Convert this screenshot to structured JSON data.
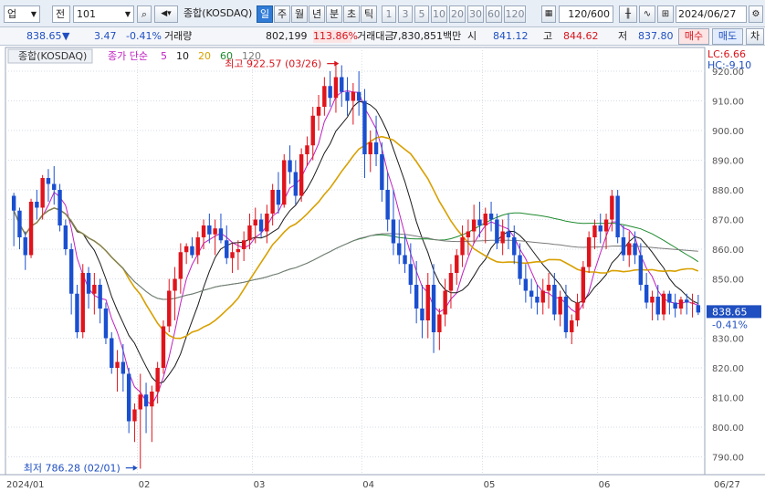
{
  "toolbar": {
    "market_select": "업",
    "prefix_label": "전",
    "code_value": "101",
    "index_name": "종합(KOSDAQ)",
    "period_tabs": [
      "일",
      "주",
      "월",
      "년",
      "분",
      "초",
      "틱"
    ],
    "active_period": "일",
    "interval_buttons": [
      "1",
      "3",
      "5",
      "10",
      "20",
      "30",
      "60",
      "120"
    ],
    "count_value": "120",
    "count_total": "/600",
    "date_value": "2024/06/27"
  },
  "quote": {
    "price": "838.65",
    "price_arrow": "▼",
    "change": "3.47",
    "change_pct": "-0.41%",
    "volume_label": "거래량",
    "volume": "802,199",
    "volume_ratio": "113.86%",
    "amount_label": "거래대금",
    "amount": "7,830,851백만",
    "open_label": "시",
    "open": "841.12",
    "high_label": "고",
    "high": "844.62",
    "low_label": "저",
    "low": "837.80",
    "buy_label": "매수",
    "sell_label": "매도",
    "extra_label": "차"
  },
  "chart_data": {
    "type": "candlestick",
    "title": "종합(KOSDAQ)",
    "indicator_label": "종가 단순",
    "ma_periods": [
      "5",
      "10",
      "20",
      "60",
      "120"
    ],
    "ma_colors": [
      "#c020c0",
      "#1a1a1a",
      "#d8a000",
      "#1e8a2e",
      "#7a7a7a"
    ],
    "up_color": "#e0141c",
    "down_color": "#1a4fd0",
    "ylim": [
      784,
      928
    ],
    "yticks": [
      790,
      800,
      810,
      820,
      830,
      840,
      850,
      860,
      870,
      880,
      890,
      900,
      910,
      920
    ],
    "ytick_labels": [
      "790.00",
      "800.00",
      "810.00",
      "820.00",
      "830.00",
      "840.00",
      "850.00",
      "860.00",
      "870.00",
      "880.00",
      "890.00",
      "900.00",
      "910.00",
      "920.00"
    ],
    "xtick_labels": [
      {
        "label": "2024/01",
        "index": 0
      },
      {
        "label": "02",
        "index": 22
      },
      {
        "label": "03",
        "index": 42
      },
      {
        "label": "04",
        "index": 61
      },
      {
        "label": "05",
        "index": 82
      },
      {
        "label": "06",
        "index": 102
      },
      {
        "label": "06/27",
        "index": 119
      }
    ],
    "current_price_label": "838.65",
    "current_change_label": "-0.41%",
    "lc_label": "LC:6.66",
    "hc_label": "HC:-9.10",
    "high_annotation": {
      "label": "최고 922.57 (03/26)",
      "index": 57,
      "value": 922.57
    },
    "low_annotation": {
      "label": "최저 786.28 (02/01)",
      "index": 22,
      "value": 786.28
    },
    "ohlc": [
      [
        878,
        879,
        861,
        873
      ],
      [
        873,
        874,
        860,
        864
      ],
      [
        864,
        866,
        853,
        858
      ],
      [
        858,
        877,
        857,
        876
      ],
      [
        876,
        880,
        870,
        874
      ],
      [
        874,
        885,
        870,
        884
      ],
      [
        884,
        887,
        876,
        882
      ],
      [
        882,
        888,
        875,
        880
      ],
      [
        880,
        882,
        866,
        868
      ],
      [
        868,
        870,
        858,
        860
      ],
      [
        860,
        862,
        838,
        845
      ],
      [
        845,
        848,
        830,
        832
      ],
      [
        832,
        855,
        830,
        852
      ],
      [
        852,
        854,
        840,
        845
      ],
      [
        845,
        852,
        838,
        848
      ],
      [
        848,
        850,
        835,
        840
      ],
      [
        840,
        842,
        828,
        830
      ],
      [
        830,
        832,
        818,
        820
      ],
      [
        820,
        826,
        812,
        822
      ],
      [
        822,
        828,
        812,
        818
      ],
      [
        818,
        820,
        798,
        802
      ],
      [
        802,
        808,
        795,
        806
      ],
      [
        806,
        818,
        786,
        811
      ],
      [
        811,
        815,
        798,
        807
      ],
      [
        807,
        814,
        795,
        812
      ],
      [
        812,
        822,
        808,
        820
      ],
      [
        820,
        836,
        818,
        834
      ],
      [
        834,
        850,
        832,
        846
      ],
      [
        846,
        854,
        836,
        850
      ],
      [
        850,
        862,
        845,
        859
      ],
      [
        859,
        862,
        855,
        861
      ],
      [
        861,
        864,
        857,
        858
      ],
      [
        858,
        866,
        855,
        864
      ],
      [
        864,
        870,
        860,
        868
      ],
      [
        868,
        872,
        862,
        865
      ],
      [
        865,
        870,
        858,
        867
      ],
      [
        867,
        872,
        862,
        863
      ],
      [
        863,
        868,
        855,
        857
      ],
      [
        857,
        862,
        852,
        859
      ],
      [
        859,
        863,
        853,
        860
      ],
      [
        860,
        866,
        856,
        863
      ],
      [
        863,
        872,
        860,
        868
      ],
      [
        868,
        874,
        862,
        870
      ],
      [
        870,
        872,
        864,
        866
      ],
      [
        866,
        875,
        862,
        872
      ],
      [
        872,
        882,
        868,
        880
      ],
      [
        880,
        886,
        872,
        875
      ],
      [
        875,
        892,
        874,
        890
      ],
      [
        890,
        895,
        882,
        886
      ],
      [
        886,
        890,
        875,
        878
      ],
      [
        878,
        894,
        876,
        892
      ],
      [
        892,
        898,
        888,
        895
      ],
      [
        895,
        908,
        890,
        905
      ],
      [
        905,
        912,
        900,
        908
      ],
      [
        908,
        918,
        905,
        915
      ],
      [
        915,
        920,
        908,
        911
      ],
      [
        911,
        923,
        906,
        918
      ],
      [
        918,
        922,
        908,
        913
      ],
      [
        913,
        918,
        905,
        910
      ],
      [
        910,
        916,
        902,
        913
      ],
      [
        913,
        920,
        905,
        910
      ],
      [
        910,
        914,
        884,
        892
      ],
      [
        892,
        900,
        886,
        896
      ],
      [
        896,
        905,
        888,
        892
      ],
      [
        892,
        896,
        876,
        880
      ],
      [
        880,
        886,
        866,
        870
      ],
      [
        870,
        880,
        858,
        862
      ],
      [
        862,
        870,
        855,
        858
      ],
      [
        858,
        865,
        852,
        855
      ],
      [
        855,
        862,
        845,
        848
      ],
      [
        848,
        856,
        835,
        840
      ],
      [
        840,
        848,
        830,
        836
      ],
      [
        836,
        852,
        830,
        848
      ],
      [
        848,
        855,
        825,
        832
      ],
      [
        832,
        840,
        826,
        838
      ],
      [
        838,
        850,
        834,
        846
      ],
      [
        846,
        855,
        840,
        852
      ],
      [
        852,
        860,
        848,
        858
      ],
      [
        858,
        868,
        854,
        864
      ],
      [
        864,
        870,
        858,
        866
      ],
      [
        866,
        875,
        862,
        870
      ],
      [
        870,
        876,
        864,
        868
      ],
      [
        868,
        874,
        862,
        872
      ],
      [
        872,
        876,
        866,
        870
      ],
      [
        870,
        872,
        860,
        862
      ],
      [
        862,
        870,
        858,
        866
      ],
      [
        866,
        872,
        860,
        864
      ],
      [
        864,
        868,
        855,
        858
      ],
      [
        858,
        862,
        848,
        850
      ],
      [
        850,
        855,
        842,
        846
      ],
      [
        846,
        850,
        840,
        844
      ],
      [
        844,
        848,
        838,
        842
      ],
      [
        842,
        850,
        838,
        846
      ],
      [
        846,
        852,
        840,
        848
      ],
      [
        848,
        852,
        836,
        838
      ],
      [
        838,
        846,
        834,
        844
      ],
      [
        844,
        848,
        830,
        832
      ],
      [
        832,
        838,
        828,
        836
      ],
      [
        836,
        845,
        834,
        842
      ],
      [
        842,
        856,
        840,
        854
      ],
      [
        854,
        866,
        852,
        864
      ],
      [
        864,
        870,
        860,
        868
      ],
      [
        868,
        872,
        862,
        866
      ],
      [
        866,
        872,
        860,
        870
      ],
      [
        870,
        880,
        866,
        878
      ],
      [
        878,
        880,
        862,
        864
      ],
      [
        864,
        868,
        856,
        858
      ],
      [
        858,
        866,
        854,
        862
      ],
      [
        862,
        866,
        855,
        858
      ],
      [
        858,
        862,
        846,
        848
      ],
      [
        848,
        852,
        840,
        842
      ],
      [
        842,
        846,
        836,
        844
      ],
      [
        844,
        848,
        836,
        838
      ],
      [
        838,
        846,
        836,
        845
      ],
      [
        845,
        846,
        838,
        842
      ],
      [
        842,
        845,
        837,
        840
      ],
      [
        840,
        844,
        838,
        843
      ],
      [
        843,
        845,
        838,
        842
      ],
      [
        842,
        845,
        837,
        842
      ],
      [
        841.12,
        844.62,
        837.8,
        838.65
      ]
    ]
  }
}
